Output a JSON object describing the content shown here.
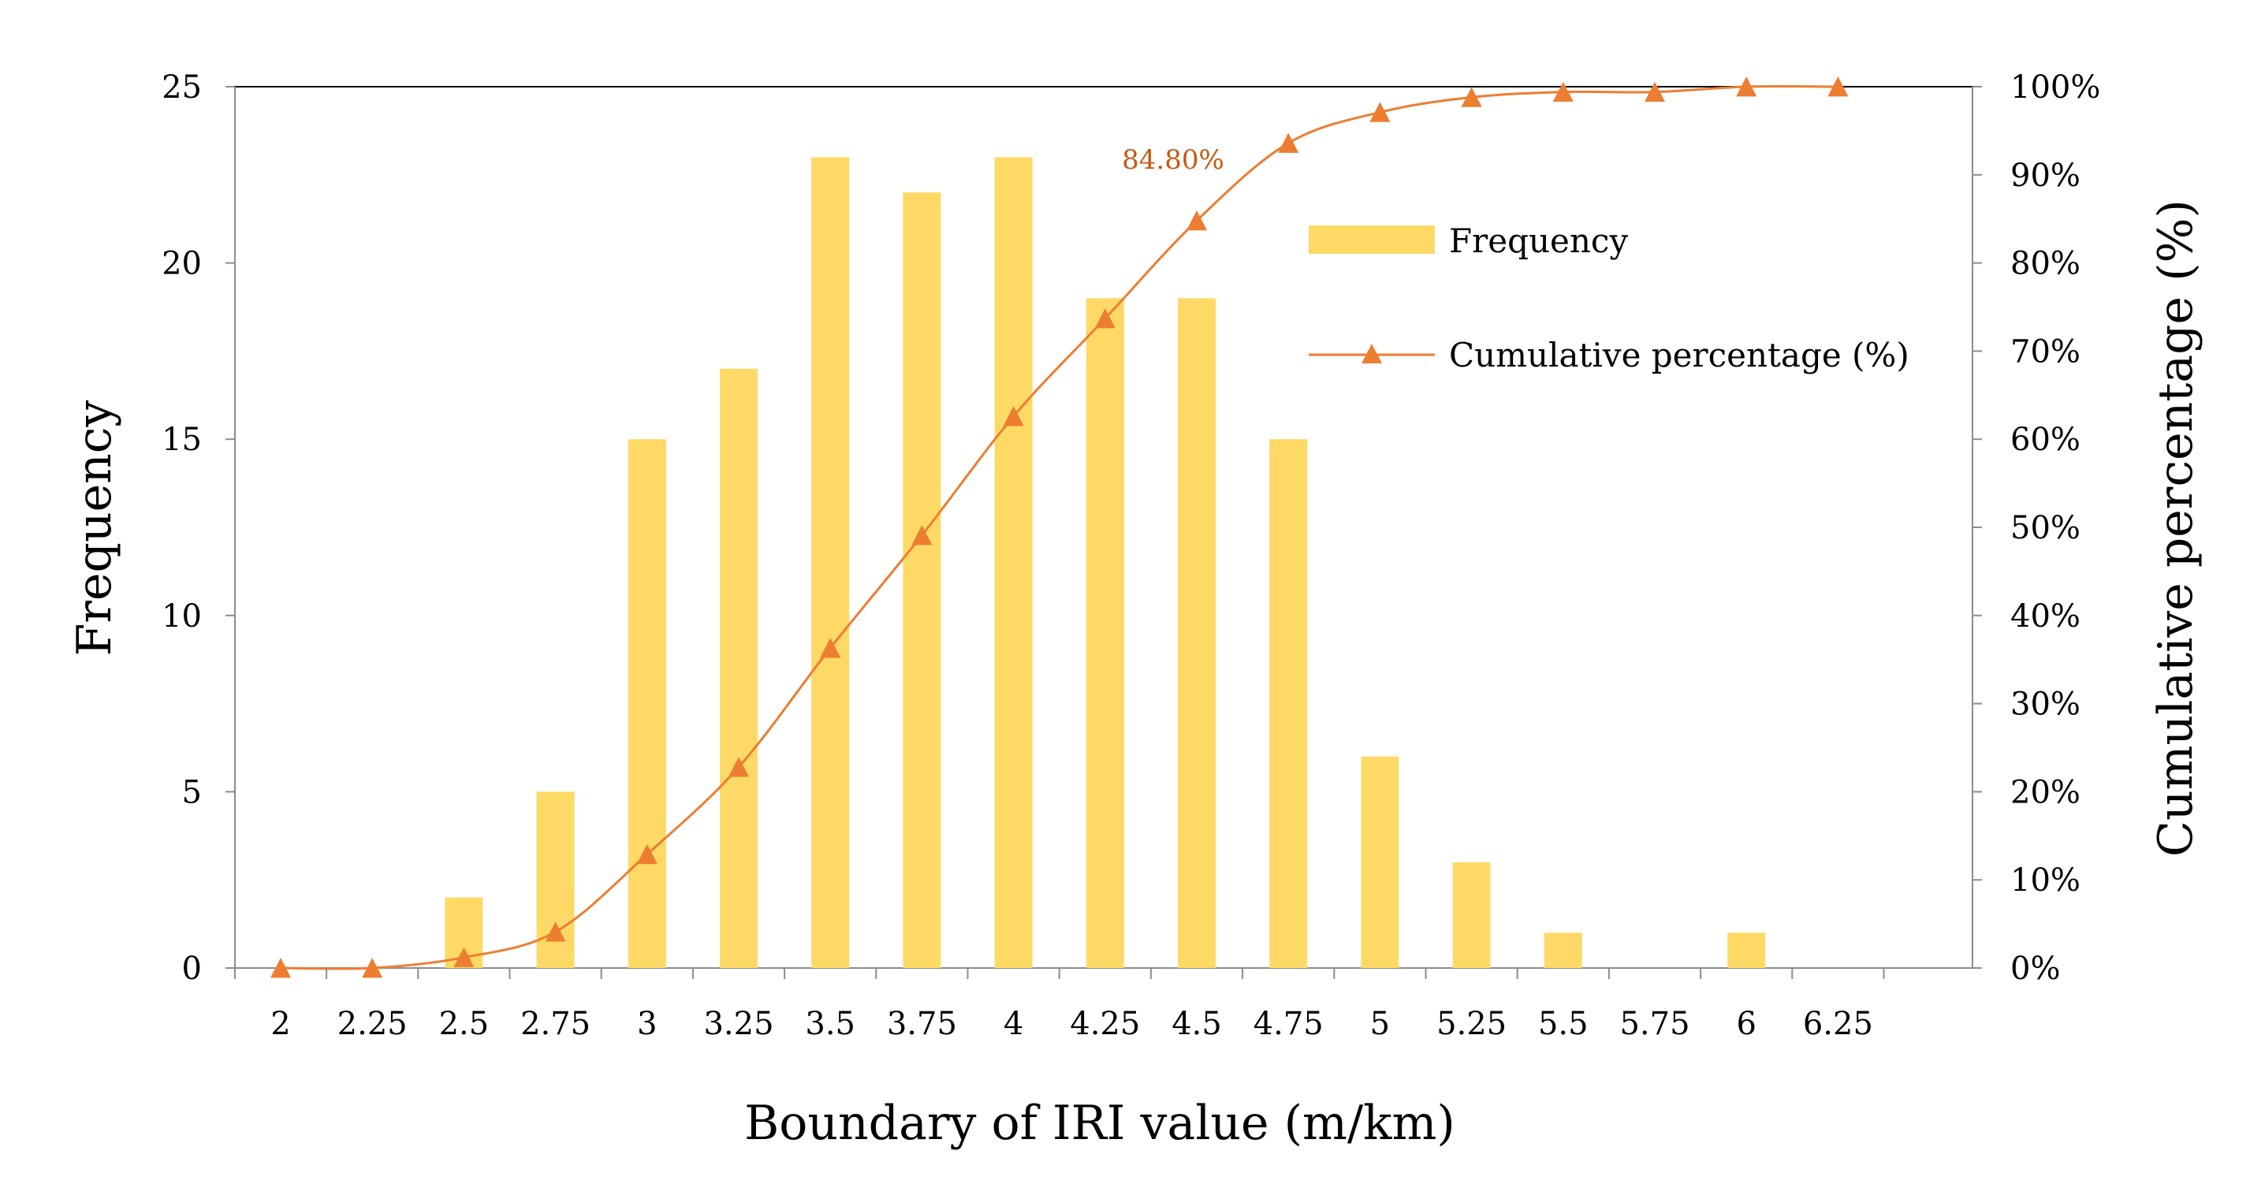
{
  "chart_data": {
    "type": "bar",
    "xlabel": "Boundary of IRI value (m/km)",
    "ylabel": "Frequency",
    "y2label": "Cumulative percentage (%)",
    "categories": [
      "2",
      "2.25",
      "2.5",
      "2.75",
      "3",
      "3.25",
      "3.5",
      "3.75",
      "4",
      "4.25",
      "4.5",
      "4.75",
      "5",
      "5.25",
      "5.5",
      "5.75",
      "6",
      "6.25"
    ],
    "ylim": [
      0,
      25
    ],
    "yticks": [
      "0",
      "5",
      "10",
      "15",
      "20",
      "25"
    ],
    "y2lim": [
      0,
      100
    ],
    "y2ticks": [
      "0%",
      "10%",
      "20%",
      "30%",
      "40%",
      "50%",
      "60%",
      "70%",
      "80%",
      "90%",
      "100%"
    ],
    "series": [
      {
        "name": "Frequency",
        "type": "bar",
        "axis": "left",
        "color": "#FFD966",
        "values": [
          0,
          0,
          2,
          5,
          15,
          17,
          23,
          22,
          23,
          19,
          19,
          15,
          6,
          3,
          1,
          0,
          1,
          0
        ]
      },
      {
        "name": "Cumulative percentage (%)",
        "type": "line",
        "axis": "right",
        "marker": "triangle",
        "color": "#ED7D31",
        "values": [
          0,
          0,
          1.2,
          4.1,
          12.9,
          22.8,
          36.3,
          49.1,
          62.6,
          73.7,
          84.8,
          93.6,
          97.1,
          98.8,
          99.4,
          99.4,
          100,
          100
        ]
      }
    ],
    "annotations": [
      {
        "text": "84.80%",
        "category": "4.5",
        "series": "Cumulative percentage (%)",
        "color": "#C55A11"
      }
    ],
    "grid": false,
    "legend": "top-right inside plot"
  }
}
